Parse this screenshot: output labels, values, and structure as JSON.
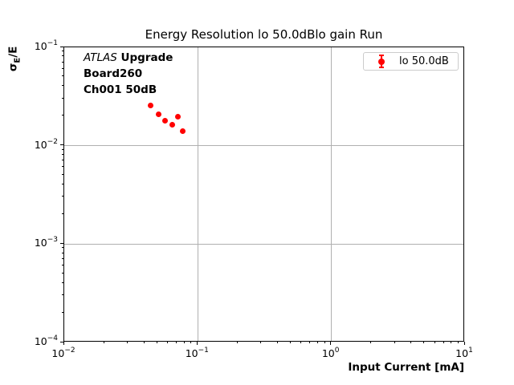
{
  "chart_data": {
    "type": "scatter",
    "title": "Energy Resolution lo 50.0dBlo gain Run",
    "xlabel": "Input Current [mA]",
    "ylabel": "σE/E",
    "ylabel_parts": {
      "symbol": "σ",
      "subscript": "E",
      "suffix": "/E"
    },
    "xscale": "log",
    "yscale": "log",
    "xlim": [
      0.01,
      10
    ],
    "ylim": [
      0.0001,
      0.1
    ],
    "x_tick_exponents": [
      -2,
      -1,
      0,
      1
    ],
    "y_tick_exponents": [
      -1,
      -2,
      -3,
      -4
    ],
    "grid": true,
    "legend_position": "upper right",
    "series": [
      {
        "name": "lo 50.0dB",
        "marker": "errorbar-dot",
        "color": "#ff0000",
        "x": [
          0.044,
          0.051,
          0.057,
          0.064,
          0.071,
          0.077
        ],
        "y": [
          0.0258,
          0.021,
          0.0181,
          0.0163,
          0.0199,
          0.014
        ]
      }
    ]
  },
  "annotation": {
    "line1_italic": "ATLAS",
    "line1_bold": " Upgrade",
    "line2": "Board260",
    "line3": "Ch001 50dB"
  },
  "colors": {
    "marker": "#ff0000",
    "grid": "#b0b0b0",
    "spine": "#000000",
    "legend_border": "#cccccc",
    "text": "#000000"
  }
}
